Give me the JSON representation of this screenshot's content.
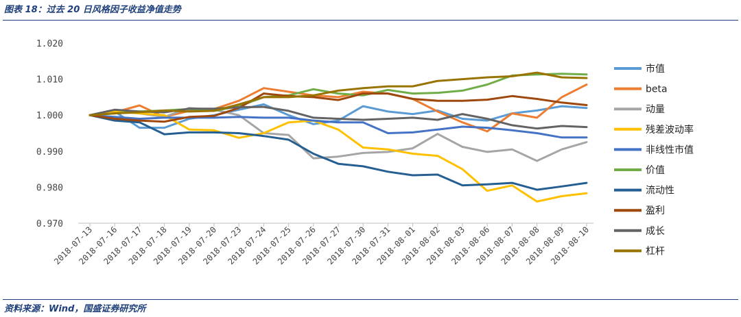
{
  "header": {
    "title": "图表 18：过去 20 日风格因子收益净值走势"
  },
  "footer": {
    "source": "资料来源：Wind，国盛证券研究所"
  },
  "chart_data": {
    "type": "line",
    "title": "",
    "xlabel": "",
    "ylabel": "",
    "ylim": [
      0.97,
      1.02
    ],
    "yticks": [
      "1.020",
      "1.010",
      "1.000",
      "0.990",
      "0.980",
      "0.970"
    ],
    "ytick_values": [
      1.02,
      1.01,
      1.0,
      0.99,
      0.98,
      0.97
    ],
    "legend_position": "right",
    "categories": [
      "2018-07-13",
      "2018-07-16",
      "2018-07-17",
      "2018-07-18",
      "2018-07-19",
      "2018-07-20",
      "2018-07-23",
      "2018-07-24",
      "2018-07-25",
      "2018-07-26",
      "2018-07-27",
      "2018-07-30",
      "2018-07-31",
      "2018-08-01",
      "2018-08-02",
      "2018-08-03",
      "2018-08-06",
      "2018-08-07",
      "2018-08-08",
      "2018-08-09",
      "2018-08-10"
    ],
    "series": [
      {
        "name": "市值",
        "color": "#5b9bd5",
        "values": [
          1.0,
          1.001,
          0.9965,
          0.9965,
          0.999,
          1.0,
          1.0015,
          1.003,
          1.0,
          0.9975,
          0.9985,
          1.0025,
          1.001,
          1.0003,
          1.0013,
          0.999,
          0.9985,
          1.0005,
          1.0013,
          1.0025,
          1.002
        ]
      },
      {
        "name": "beta",
        "color": "#ed7d31",
        "values": [
          1.0,
          1.0008,
          1.0027,
          0.9995,
          1.0012,
          1.0017,
          1.004,
          1.0075,
          1.0065,
          1.0055,
          1.005,
          1.0065,
          1.006,
          1.0045,
          1.001,
          0.998,
          0.9955,
          1.0005,
          0.9993,
          1.005,
          1.0085
        ]
      },
      {
        "name": "动量",
        "color": "#a5a5a5",
        "values": [
          1.0,
          1.0015,
          1.0005,
          0.9995,
          1.002,
          1.0015,
          1.0,
          0.995,
          0.9945,
          0.988,
          0.9885,
          0.9895,
          0.9898,
          0.9908,
          0.9948,
          0.9912,
          0.9898,
          0.9905,
          0.9873,
          0.9905,
          0.9925
        ]
      },
      {
        "name": "残差波动率",
        "color": "#ffc000",
        "values": [
          1.0,
          1.001,
          1.0005,
          1.0,
          0.996,
          0.9958,
          0.9937,
          0.995,
          0.998,
          0.9985,
          0.996,
          0.991,
          0.9905,
          0.9893,
          0.9887,
          0.985,
          0.979,
          0.9805,
          0.976,
          0.9775,
          0.9783
        ]
      },
      {
        "name": "非线性市值",
        "color": "#4472c4",
        "values": [
          1.0,
          0.9995,
          0.999,
          0.9993,
          0.9993,
          0.9993,
          0.9995,
          0.9993,
          0.9993,
          0.9985,
          0.998,
          0.998,
          0.995,
          0.9952,
          0.996,
          0.9968,
          0.9965,
          0.9958,
          0.995,
          0.9938,
          0.9938
        ]
      },
      {
        "name": "价值",
        "color": "#70ad47",
        "values": [
          1.0,
          1.0005,
          1.001,
          1.0013,
          1.0017,
          1.0012,
          1.0025,
          1.005,
          1.0055,
          1.0072,
          1.006,
          1.0055,
          1.007,
          1.006,
          1.0062,
          1.0068,
          1.0085,
          1.011,
          1.0113,
          1.0115,
          1.0113
        ]
      },
      {
        "name": "流动性",
        "color": "#255e91",
        "values": [
          1.0,
          0.9985,
          0.998,
          0.9947,
          0.9952,
          0.9952,
          0.995,
          0.9942,
          0.9932,
          0.9893,
          0.9865,
          0.9858,
          0.9843,
          0.9833,
          0.9835,
          0.9805,
          0.9808,
          0.9812,
          0.9793,
          0.9802,
          0.9812
        ]
      },
      {
        "name": "盈利",
        "color": "#9e480e",
        "values": [
          1.0,
          0.999,
          0.9985,
          0.9982,
          0.9995,
          0.9998,
          1.002,
          1.006,
          1.0053,
          1.005,
          1.0042,
          1.006,
          1.006,
          1.0045,
          1.004,
          1.004,
          1.0043,
          1.0053,
          1.0045,
          1.0035,
          1.0028
        ]
      },
      {
        "name": "成长",
        "color": "#636363",
        "values": [
          1.0,
          1.0015,
          1.001,
          1.0008,
          1.0018,
          1.0018,
          1.0022,
          1.0023,
          1.0012,
          0.9993,
          0.999,
          0.9987,
          0.999,
          0.9993,
          0.9987,
          1.0003,
          0.999,
          0.9972,
          0.9963,
          0.997,
          0.9967
        ]
      },
      {
        "name": "杠杆",
        "color": "#997300",
        "values": [
          1.0,
          1.0005,
          1.0008,
          1.0013,
          1.001,
          1.0012,
          1.003,
          1.005,
          1.005,
          1.0055,
          1.0068,
          1.0075,
          1.008,
          1.008,
          1.0095,
          1.01,
          1.0105,
          1.0108,
          1.0118,
          1.0105,
          1.0103
        ]
      }
    ]
  }
}
